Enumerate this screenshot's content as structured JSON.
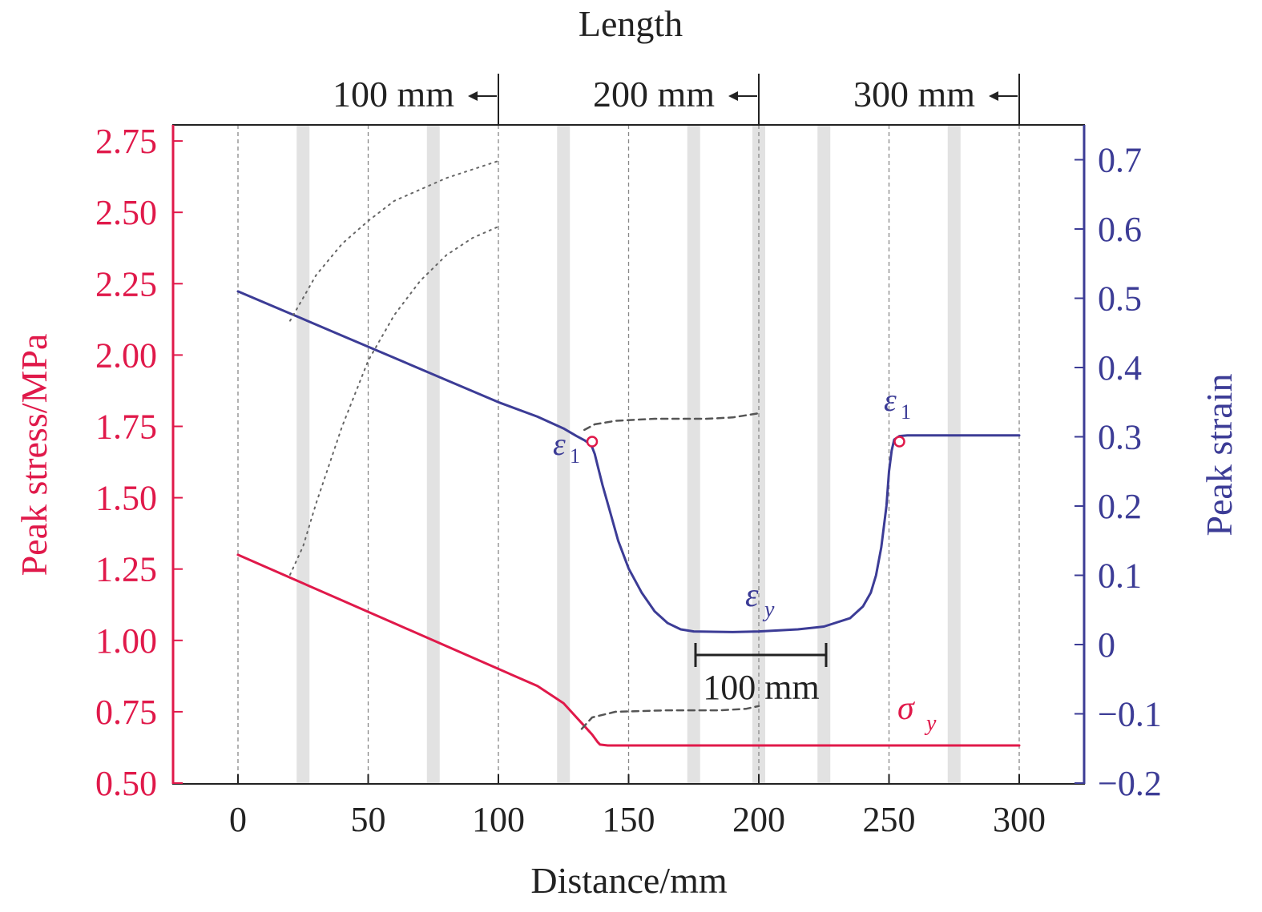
{
  "colors": {
    "stress": "#e0194a",
    "strain": "#3c3c96",
    "text": "#222222",
    "grid": "#888888",
    "band": "#e2e2e2"
  },
  "chart_data": {
    "type": "line",
    "xlabel": "Distance/mm",
    "ylabel_left": "Peak stress/MPa",
    "ylabel_right": "Peak strain",
    "top_title": "Length",
    "xlim": [
      -25,
      325
    ],
    "ylim_left": [
      0.5,
      2.8
    ],
    "ylim_right": [
      -0.2,
      0.75
    ],
    "x_ticks": [
      "0",
      "50",
      "100",
      "150",
      "200",
      "250",
      "300"
    ],
    "y_left_ticks": [
      "0.50",
      "0.75",
      "1.00",
      "1.25",
      "1.50",
      "1.75",
      "2.00",
      "2.25",
      "2.50",
      "2.75"
    ],
    "y_right_ticks": [
      "−0.2",
      "−0.1",
      "0",
      "0.1",
      "0.2",
      "0.3",
      "0.4",
      "0.5",
      "0.6",
      "0.7"
    ],
    "grid_x_dashed": [
      0,
      50,
      100,
      150,
      200,
      250,
      300
    ],
    "gray_bands_x": [
      25,
      75,
      125,
      175,
      200,
      225,
      275
    ],
    "length_markers": [
      {
        "label": "100 mm",
        "x": 100
      },
      {
        "label": "200 mm",
        "x": 200
      },
      {
        "label": "300 mm",
        "x": 300
      }
    ],
    "series": [
      {
        "axis": "right",
        "style": "solid",
        "points": [
          [
            0,
            0.51
          ],
          [
            20,
            0.478
          ],
          [
            40,
            0.446
          ],
          [
            60,
            0.414
          ],
          [
            80,
            0.382
          ],
          [
            100,
            0.35
          ],
          [
            115,
            0.329
          ],
          [
            125,
            0.312
          ],
          [
            130,
            0.301
          ],
          [
            133,
            0.295
          ],
          [
            135,
            0.29
          ],
          [
            136,
            0.285
          ],
          [
            137,
            0.275
          ],
          [
            138,
            0.26
          ],
          [
            140,
            0.23
          ],
          [
            143,
            0.19
          ],
          [
            146,
            0.15
          ],
          [
            150,
            0.11
          ],
          [
            155,
            0.075
          ],
          [
            160,
            0.048
          ],
          [
            165,
            0.031
          ],
          [
            170,
            0.022
          ],
          [
            175,
            0.019
          ],
          [
            190,
            0.018
          ],
          [
            200,
            0.019
          ],
          [
            215,
            0.022
          ],
          [
            225,
            0.026
          ],
          [
            235,
            0.038
          ],
          [
            240,
            0.055
          ],
          [
            243,
            0.075
          ],
          [
            245,
            0.1
          ],
          [
            247,
            0.14
          ],
          [
            249,
            0.2
          ],
          [
            250,
            0.25
          ],
          [
            251,
            0.28
          ],
          [
            252,
            0.296
          ],
          [
            254,
            0.301
          ],
          [
            257,
            0.302
          ],
          [
            270,
            0.302
          ],
          [
            300,
            0.302
          ]
        ]
      },
      {
        "axis": "right",
        "style": "dashed",
        "points": [
          [
            133,
            0.31
          ],
          [
            137,
            0.318
          ],
          [
            145,
            0.323
          ],
          [
            160,
            0.326
          ],
          [
            180,
            0.326
          ],
          [
            190,
            0.328
          ],
          [
            200,
            0.334
          ]
        ]
      },
      {
        "axis": "left",
        "style": "solid",
        "points": [
          [
            0,
            1.3
          ],
          [
            20,
            1.22
          ],
          [
            40,
            1.14
          ],
          [
            60,
            1.06
          ],
          [
            80,
            0.98
          ],
          [
            100,
            0.9
          ],
          [
            115,
            0.84
          ],
          [
            125,
            0.78
          ],
          [
            130,
            0.73
          ],
          [
            133,
            0.7
          ],
          [
            136,
            0.67
          ],
          [
            138,
            0.645
          ],
          [
            139,
            0.635
          ],
          [
            142,
            0.632
          ],
          [
            200,
            0.632
          ],
          [
            300,
            0.632
          ]
        ]
      },
      {
        "axis": "left",
        "style": "dashed",
        "points": [
          [
            132,
            0.69
          ],
          [
            136,
            0.73
          ],
          [
            145,
            0.75
          ],
          [
            165,
            0.755
          ],
          [
            185,
            0.755
          ],
          [
            195,
            0.76
          ],
          [
            200,
            0.77
          ]
        ]
      },
      {
        "axis": "left",
        "style": "dotted",
        "points": [
          [
            20,
            2.12
          ],
          [
            25,
            2.2
          ],
          [
            30,
            2.28
          ],
          [
            40,
            2.39
          ],
          [
            50,
            2.47
          ],
          [
            60,
            2.54
          ],
          [
            70,
            2.58
          ],
          [
            80,
            2.62
          ],
          [
            90,
            2.65
          ],
          [
            100,
            2.68
          ]
        ]
      },
      {
        "axis": "left",
        "style": "dotted",
        "points": [
          [
            20,
            1.23
          ],
          [
            25,
            1.33
          ],
          [
            30,
            1.48
          ],
          [
            40,
            1.75
          ],
          [
            50,
            1.98
          ],
          [
            60,
            2.14
          ],
          [
            70,
            2.26
          ],
          [
            80,
            2.35
          ],
          [
            90,
            2.41
          ],
          [
            100,
            2.45
          ]
        ]
      }
    ],
    "markers": [
      {
        "x": 136,
        "y_right": 0.293
      },
      {
        "x": 254,
        "y_right": 0.293
      }
    ],
    "annotations": {
      "eps1_a": "ε",
      "eps1_b": "ε",
      "eps1_sub": "1",
      "eps_y": "ε",
      "eps_y_sub": "y",
      "sigma_y": "σ",
      "sigma_y_sub": "y",
      "scale_bar_label": "100 mm"
    }
  }
}
